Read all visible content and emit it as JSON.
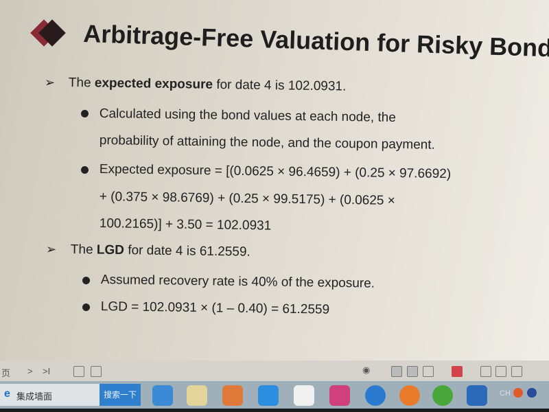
{
  "slide": {
    "title": "Arbitrage-Free Valuation for Risky Bonds",
    "bullets": [
      {
        "pre": "The ",
        "bold": "expected exposure",
        "post": " for date 4 is 102.0931."
      },
      {
        "pre": "The ",
        "bold": "LGD",
        "post": " for date 4 is 61.2559."
      }
    ],
    "sub": [
      "Calculated using the bond values at each node, the",
      "probability of attaining the node, and the coupon payment.",
      "Expected exposure = [(0.0625 × 96.4659) + (0.25 × 97.6692)",
      "+ (0.375 × 98.6769) + (0.25 × 99.5175) + (0.0625 ×",
      "100.2165)] + 3.50 = 102.0931",
      "Assumed recovery rate is 40% of the exposure.",
      "LGD = 102.0931 × (1 – 0.40) = 61.2559"
    ]
  },
  "viewbar": {
    "page_label": "页",
    "next": ">",
    "last": ">I"
  },
  "taskbar": {
    "search_text": "集成墙面",
    "search_button": "搜索一下",
    "lang": "CH"
  }
}
